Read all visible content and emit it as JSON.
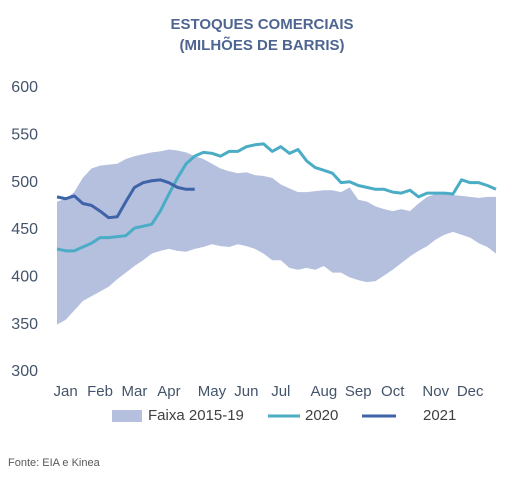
{
  "chart_data": {
    "type": "band-line",
    "title": "ESTOQUES COMERCIAIS",
    "subtitle": "(MILHÕES DE BARRIS)",
    "source": "Fonte: EIA e Kinea",
    "categories": [
      null,
      "Jan",
      null,
      null,
      null,
      "Feb",
      null,
      null,
      null,
      "Mar",
      null,
      null,
      null,
      "Apr",
      null,
      null,
      null,
      null,
      "May",
      null,
      null,
      null,
      "Jun",
      null,
      null,
      null,
      "Jul",
      null,
      null,
      null,
      null,
      "Aug",
      null,
      null,
      null,
      "Sep",
      null,
      null,
      null,
      "Oct",
      null,
      null,
      null,
      null,
      "Nov",
      null,
      null,
      null,
      "Dec",
      null,
      null,
      null
    ],
    "ylim": [
      300,
      600
    ],
    "yticks": [
      300,
      350,
      400,
      450,
      500,
      550,
      600
    ],
    "series": [
      {
        "name": "Faixa 2015-19",
        "color": "#b4c0de",
        "values": [
          480,
          483,
          490,
          505,
          515,
          518,
          519,
          520,
          525,
          528,
          530,
          532,
          533,
          535,
          534,
          532,
          528,
          525,
          520,
          515,
          512,
          510,
          511,
          508,
          507,
          505,
          498,
          494,
          490,
          490,
          491,
          492,
          492,
          490,
          495,
          482,
          480,
          475,
          472,
          470,
          472,
          470,
          478,
          485,
          488,
          488,
          487,
          486,
          485,
          484,
          485,
          485
        ],
        "lower": [
          350,
          355,
          365,
          375,
          380,
          385,
          390,
          398,
          405,
          412,
          418,
          425,
          428,
          430,
          428,
          427,
          430,
          432,
          435,
          433,
          432,
          435,
          433,
          430,
          425,
          418,
          418,
          410,
          408,
          410,
          408,
          412,
          405,
          405,
          400,
          397,
          395,
          396,
          402,
          408,
          415,
          422,
          428,
          433,
          440,
          445,
          448,
          445,
          442,
          436,
          432,
          425
        ]
      },
      {
        "name": "2020",
        "color": "#4bacc6",
        "values": [
          430,
          428,
          428,
          432,
          436,
          442,
          442,
          443,
          444,
          452,
          454,
          456,
          470,
          488,
          505,
          520,
          528,
          532,
          531,
          528,
          533,
          533,
          538,
          540,
          541,
          533,
          538,
          531,
          535,
          523,
          516,
          513,
          510,
          500,
          501,
          497,
          495,
          493,
          493,
          490,
          489,
          492,
          485,
          489,
          489,
          489,
          488,
          503,
          500,
          500,
          497,
          493
        ]
      },
      {
        "name": "2021",
        "color": "#3f63a8",
        "values": [
          485,
          483,
          486,
          478,
          476,
          470,
          463,
          464,
          480,
          495,
          500,
          502,
          503,
          500,
          495,
          493,
          493,
          null,
          null,
          null,
          null,
          null,
          null,
          null,
          null,
          null,
          null,
          null,
          null,
          null,
          null,
          null,
          null,
          null,
          null,
          null,
          null,
          null,
          null,
          null,
          null,
          null,
          null,
          null,
          null,
          null,
          null,
          null,
          null,
          null,
          null,
          null
        ]
      }
    ]
  }
}
